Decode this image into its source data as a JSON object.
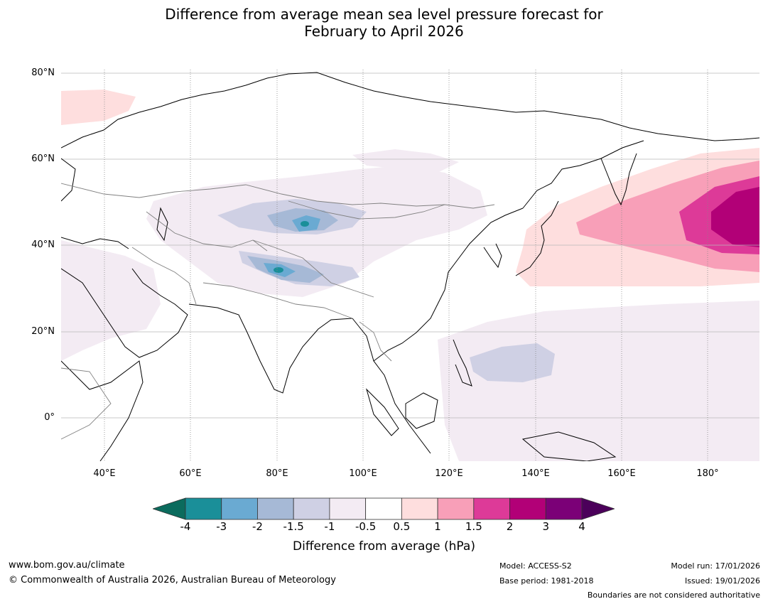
{
  "title": {
    "line1": "Difference from average mean sea level pressure forecast for",
    "line2": "February to April 2026"
  },
  "map": {
    "lat_labels": [
      "80°N",
      "60°N",
      "40°N",
      "20°N",
      "0°"
    ],
    "lon_labels": [
      "40°E",
      "60°E",
      "80°E",
      "100°E",
      "120°E",
      "140°E",
      "160°E",
      "180°"
    ],
    "extent": {
      "lon": [
        30,
        192
      ],
      "lat": [
        -10,
        81
      ]
    }
  },
  "colorbar": {
    "ticks": [
      "-4",
      "-3",
      "-2",
      "-1.5",
      "-1",
      "-0.5",
      "0.5",
      "1",
      "1.5",
      "2",
      "3",
      "4"
    ],
    "colors": [
      "#1a8f99",
      "#6aaad2",
      "#a6b9d6",
      "#cfd0e4",
      "#f3ebf3",
      "#ffffff",
      "#fedede",
      "#f89fb8",
      "#dd3a98",
      "#b20077",
      "#7b0077"
    ],
    "under_color": "#0b6b5d",
    "over_color": "#4b005a",
    "label": "Difference from average (hPa)"
  },
  "footer": {
    "url": "www.bom.gov.au/climate",
    "copyright": "© Commonwealth of Australia 2026, Australian Bureau of Meteorology",
    "model": "Model: ACCESS-S2",
    "base_period": "Base period: 1981-2018",
    "model_run": "Model run: 17/01/2026",
    "issued": "Issued: 19/01/2026",
    "disclaimer": "Boundaries are not considered authoritative"
  }
}
